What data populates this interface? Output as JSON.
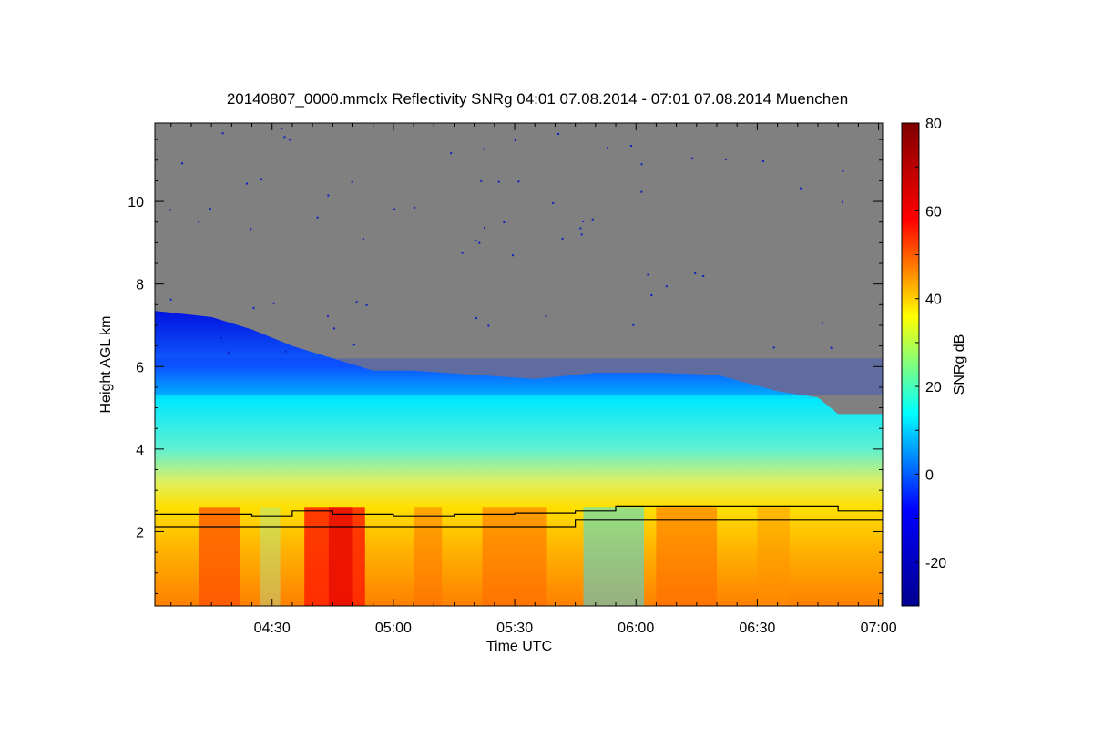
{
  "chart_data": {
    "type": "heatmap",
    "title": "20140807_0000.mmclx Reflectivity SNRg   04:01 07.08.2014 - 07:01 07.08.2014 Muenchen",
    "xlabel": "Time UTC",
    "ylabel": "Height AGL km",
    "xlim": [
      "04:01",
      "07:01"
    ],
    "ylim": [
      0.2,
      11.9
    ],
    "x_ticks": [
      "04:30",
      "05:00",
      "05:30",
      "06:00",
      "06:30",
      "07:00"
    ],
    "y_ticks": [
      2,
      4,
      6,
      8,
      10
    ],
    "colorbar": {
      "label": "SNRg dB",
      "range": [
        -30,
        80
      ],
      "ticks": [
        -20,
        0,
        20,
        40,
        60,
        80
      ],
      "colormap": [
        "#00008f",
        "#0000ff",
        "#00ffff",
        "#ffff00",
        "#ff0000",
        "#800000"
      ]
    },
    "no_signal_color": "#808080",
    "echo_top_km": [
      {
        "t": "04:01",
        "h": 7.35
      },
      {
        "t": "04:15",
        "h": 7.2
      },
      {
        "t": "04:25",
        "h": 6.9
      },
      {
        "t": "04:35",
        "h": 6.5
      },
      {
        "t": "04:45",
        "h": 6.2
      },
      {
        "t": "04:55",
        "h": 5.9
      },
      {
        "t": "05:05",
        "h": 5.9
      },
      {
        "t": "05:20",
        "h": 5.8
      },
      {
        "t": "05:35",
        "h": 5.7
      },
      {
        "t": "05:50",
        "h": 5.85
      },
      {
        "t": "06:05",
        "h": 5.85
      },
      {
        "t": "06:20",
        "h": 5.8
      },
      {
        "t": "06:35",
        "h": 5.4
      },
      {
        "t": "06:45",
        "h": 5.25
      },
      {
        "t": "06:50",
        "h": 4.85
      },
      {
        "t": "07:01",
        "h": 4.85
      }
    ],
    "lines": [
      {
        "name": "",
        "points": [
          {
            "t": "04:01",
            "h": 2.42
          },
          {
            "t": "04:25",
            "h": 2.38
          },
          {
            "t": "04:35",
            "h": 2.5
          },
          {
            "t": "04:45",
            "h": 2.42
          },
          {
            "t": "05:00",
            "h": 2.38
          },
          {
            "t": "05:15",
            "h": 2.42
          },
          {
            "t": "05:30",
            "h": 2.45
          },
          {
            "t": "05:45",
            "h": 2.5
          },
          {
            "t": "05:55",
            "h": 2.62
          },
          {
            "t": "06:45",
            "h": 2.62
          },
          {
            "t": "06:50",
            "h": 2.5
          },
          {
            "t": "07:01",
            "h": 2.5
          }
        ]
      },
      {
        "name": "",
        "points": [
          {
            "t": "04:01",
            "h": 2.12
          },
          {
            "t": "05:44",
            "h": 2.12
          },
          {
            "t": "05:45",
            "h": 2.28
          },
          {
            "t": "07:01",
            "h": 2.28
          }
        ]
      }
    ],
    "grid": false,
    "legend": "none"
  }
}
